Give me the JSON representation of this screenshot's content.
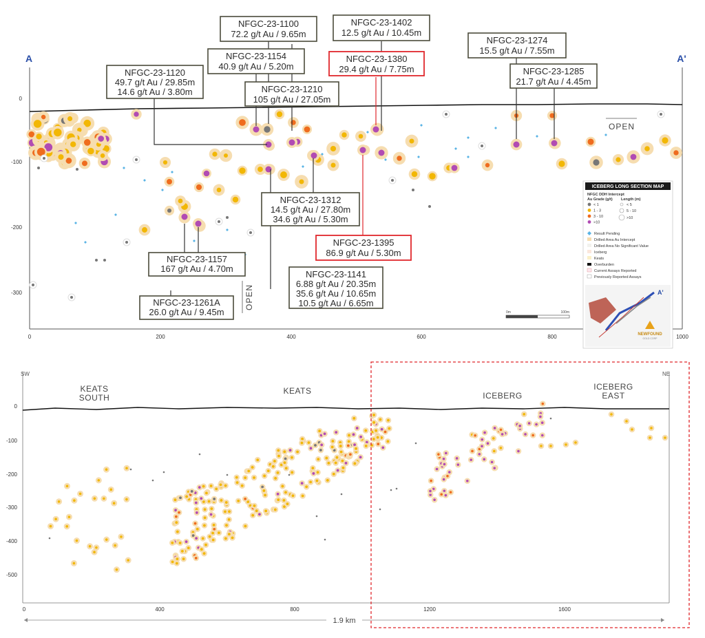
{
  "top_section": {
    "endpoints": {
      "left": "A",
      "right": "A'"
    },
    "open_labels": [
      "OPEN",
      "OPEN"
    ],
    "y_ticks": [
      "0",
      "-100",
      "-200",
      "-300"
    ],
    "x_ticks": [
      "0",
      "200",
      "400",
      "600",
      "800",
      "1000"
    ],
    "scale_bar": {
      "start": "0m",
      "end": "100m"
    },
    "callouts": [
      {
        "id": "c1100",
        "lines": [
          "NFGC-23-1100",
          "72.2 g/t Au / 9.65m"
        ]
      },
      {
        "id": "c1402",
        "lines": [
          "NFGC-23-1402",
          "12.5 g/t Au / 10.45m"
        ]
      },
      {
        "id": "c1154",
        "lines": [
          "NFGC-23-1154",
          "40.9 g/t Au / 5.20m"
        ]
      },
      {
        "id": "c1380",
        "lines": [
          "NFGC-23-1380",
          "29.4 g/t Au / 7.75m"
        ]
      },
      {
        "id": "c1274",
        "lines": [
          "NFGC-23-1274",
          "15.5 g/t Au / 7.55m"
        ]
      },
      {
        "id": "c1120",
        "lines": [
          "NFGC-23-1120",
          "49.7 g/t Au / 29.85m",
          "14.6 g/t Au / 3.80m"
        ]
      },
      {
        "id": "c1210",
        "lines": [
          "NFGC-23-1210",
          "105 g/t Au / 27.05m"
        ]
      },
      {
        "id": "c1285",
        "lines": [
          "NFGC-23-1285",
          "21.7 g/t Au / 4.45m"
        ]
      },
      {
        "id": "c1312",
        "lines": [
          "NFGC-23-1312",
          "14.5 g/t Au / 27.80m",
          "34.6 g/t Au / 5.30m"
        ]
      },
      {
        "id": "c1395",
        "lines": [
          "NFGC-23-1395",
          "86.9 g/t Au / 5.30m"
        ]
      },
      {
        "id": "c1157",
        "lines": [
          "NFGC-23-1157",
          "167 g/t  Au / 4.70m"
        ]
      },
      {
        "id": "c1141",
        "lines": [
          "NFGC-23-1141",
          "6.88 g/t Au / 20.35m",
          "35.6 g/t Au / 10.65m",
          "10.5 g/t Au / 6.65m"
        ]
      },
      {
        "id": "c1261",
        "lines": [
          "NFGC-23-1261A",
          "26.0 g/t Au / 9.45m"
        ]
      }
    ],
    "legend": {
      "title": "ICEBERG LONG SECTION MAP",
      "subtitle": "NFGC DDH Intercept",
      "grade_header": "Au Grade (g/t)",
      "length_header": "Length (m)",
      "grades": [
        {
          "label": "< 1",
          "color": "#777777"
        },
        {
          "label": "1 - 3",
          "color": "#f2b705"
        },
        {
          "label": "3 - 10",
          "color": "#ef6c1e"
        },
        {
          "label": ">10",
          "color": "#b14bb3"
        }
      ],
      "lengths": [
        "< 5",
        "5 - 10",
        ">10"
      ],
      "items": [
        "Result Pending",
        "Drilled Area Au Intercept",
        "Drilled Area No Significant Value",
        "Iceberg",
        "Keats",
        "Overburden",
        "Current Assays Reported",
        "Previously Reported Assays"
      ],
      "map_label": "A'",
      "logo": "NEWFOUND",
      "logo_sub": "GOLD CORP"
    }
  },
  "bottom_section": {
    "endpoints": {
      "left": "SW",
      "right": "NE"
    },
    "zones": [
      {
        "lines": [
          "KEATS",
          "SOUTH"
        ]
      },
      {
        "lines": [
          "KEATS"
        ]
      },
      {
        "lines": [
          "ICEBERG"
        ]
      },
      {
        "lines": [
          "ICEBERG",
          "EAST"
        ]
      }
    ],
    "y_ticks": [
      "0",
      "-100",
      "-200",
      "-300",
      "-400",
      "-500"
    ],
    "x_ticks": [
      "0",
      "400",
      "800",
      "1200",
      "1600"
    ],
    "distance": "1.9 km"
  },
  "colors": {
    "low": "#777777",
    "mid": "#f2b705",
    "high": "#ef6c1e",
    "top": "#b14bb3",
    "halo": "#f6ddb0",
    "pending": "#5ab4e5",
    "highlight": "#e0262b"
  }
}
